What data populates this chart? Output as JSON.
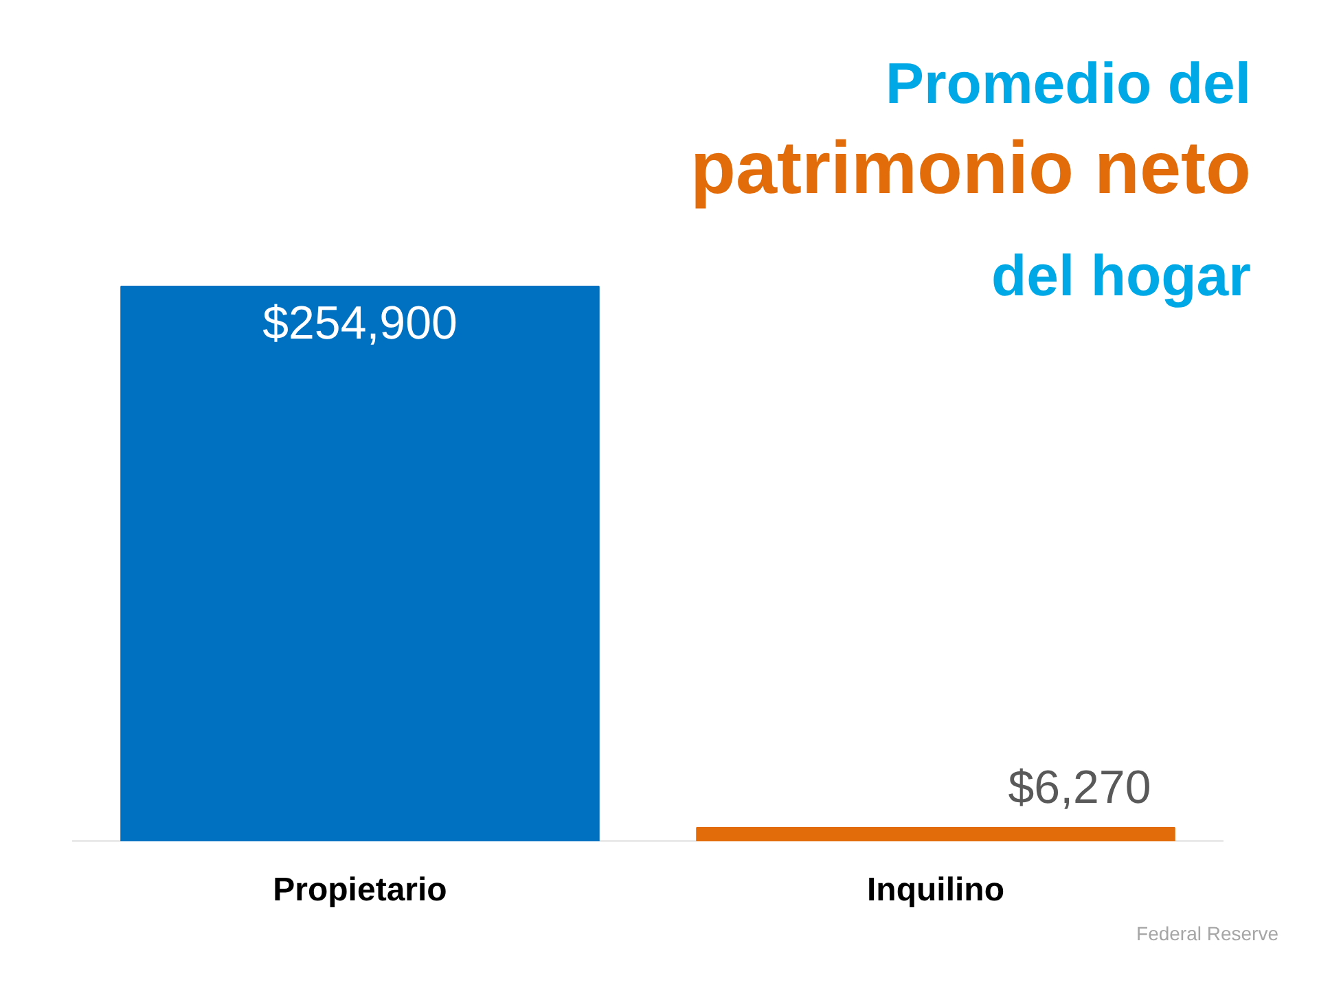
{
  "chart_data": {
    "type": "bar",
    "title": "Promedio del\npatrimonio neto\ndel hogar",
    "categories": [
      "Propietario",
      "Inquilino"
    ],
    "values": [
      254900,
      6270
    ],
    "colors": [
      "#0070c0",
      "#e36c0a"
    ],
    "value_labels": [
      "$254,900",
      "$6,270"
    ],
    "annotations": [
      "Federal Reserve"
    ],
    "grid": false
  }
}
